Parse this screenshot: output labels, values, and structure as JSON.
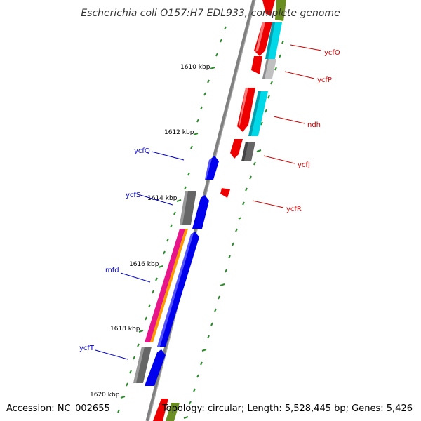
{
  "title": "Escherichia coli O157:H7 EDL933, complete genome",
  "footer": {
    "accession": "Accession: NC_002655",
    "summary": "Topology: circular; Length: 5,528,445 bp; Genes: 5,426"
  },
  "ticks": [
    "1610 kbp",
    "1612 kbp",
    "1614 kbp",
    "1616 kbp",
    "1618 kbp",
    "1620 kbp"
  ],
  "genes_left": [
    "ycfQ",
    "ycfS",
    "mfd",
    "ycfT"
  ],
  "genes_right": [
    "ycfO",
    "ycfP",
    "ndh",
    "ycfJ",
    "ycfR"
  ],
  "colors": {
    "backbone": "#808080",
    "tick": "#2e8b2e",
    "forward_gene": "#0000ee",
    "reverse_gene": "#ee0000",
    "gray_feature": "#666666",
    "cyan_feature": "#00d8e8",
    "magenta_feature": "#e8158a",
    "orange_feature": "#ff9900",
    "olive_feature": "#6b8e23",
    "leader_left": "#0000cc",
    "leader_right": "#cc0000"
  }
}
